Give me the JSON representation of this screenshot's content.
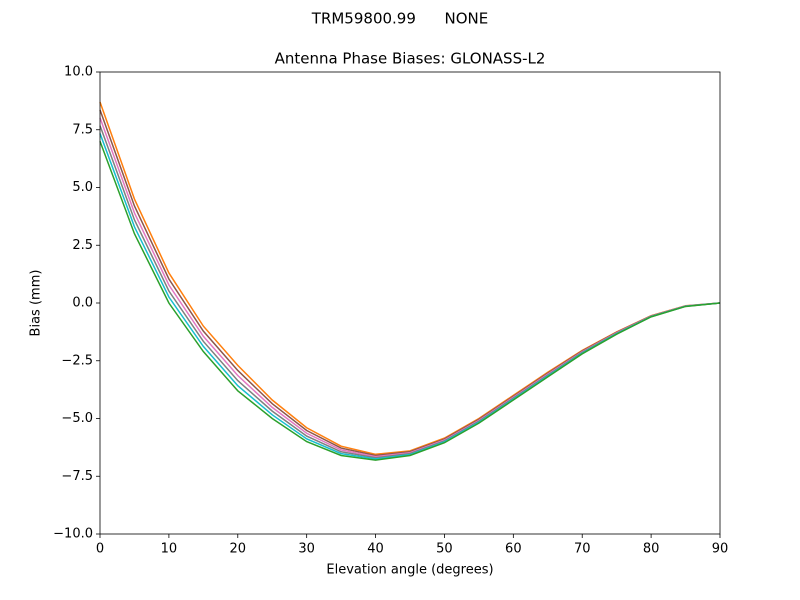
{
  "chart_data": {
    "type": "line",
    "suptitle": "TRM59800.99      NONE",
    "title": "Antenna Phase Biases: GLONASS-L2",
    "xlabel": "Elevation angle (degrees)",
    "ylabel": "Bias (mm)",
    "x": [
      0,
      5,
      10,
      15,
      20,
      25,
      30,
      35,
      40,
      45,
      50,
      55,
      60,
      65,
      70,
      75,
      80,
      85,
      90
    ],
    "xlim": [
      0,
      90
    ],
    "xticks": [
      0,
      10,
      20,
      30,
      40,
      50,
      60,
      70,
      80,
      90
    ],
    "ylim": [
      -10,
      10
    ],
    "yticks": [
      {
        "value": -10,
        "label": "−10.0"
      },
      {
        "value": -7.5,
        "label": "−7.5"
      },
      {
        "value": -5,
        "label": "−5.0"
      },
      {
        "value": -2.5,
        "label": "−2.5"
      },
      {
        "value": 0,
        "label": "0.0"
      },
      {
        "value": 2.5,
        "label": "2.5"
      },
      {
        "value": 5,
        "label": "5.0"
      },
      {
        "value": 7.5,
        "label": "7.5"
      },
      {
        "value": 10,
        "label": "10.0"
      }
    ],
    "series": [
      {
        "color": "#ff7f0e",
        "values": [
          8.7,
          4.5,
          1.3,
          -1.0,
          -2.7,
          -4.2,
          -5.4,
          -6.2,
          -6.55,
          -6.4,
          -5.85,
          -5.0,
          -4.0,
          -3.0,
          -2.05,
          -1.25,
          -0.55,
          -0.12,
          0
        ]
      },
      {
        "color": "#8c564b",
        "values": [
          8.36,
          4.2,
          1.04,
          -1.22,
          -2.92,
          -4.36,
          -5.52,
          -6.28,
          -6.6,
          -6.44,
          -5.89,
          -5.04,
          -4.04,
          -3.04,
          -2.08,
          -1.27,
          -0.56,
          -0.13,
          0
        ]
      },
      {
        "color": "#e377c2",
        "values": [
          8.02,
          3.9,
          0.78,
          -1.44,
          -3.14,
          -4.52,
          -5.64,
          -6.36,
          -6.65,
          -6.48,
          -5.93,
          -5.08,
          -4.08,
          -3.08,
          -2.11,
          -1.29,
          -0.57,
          -0.13,
          0
        ]
      },
      {
        "color": "#7f7f7f",
        "values": [
          7.68,
          3.6,
          0.52,
          -1.66,
          -3.36,
          -4.68,
          -5.76,
          -6.44,
          -6.7,
          -6.52,
          -5.97,
          -5.12,
          -4.12,
          -3.12,
          -2.14,
          -1.31,
          -0.58,
          -0.14,
          0
        ]
      },
      {
        "color": "#17becf",
        "values": [
          7.34,
          3.3,
          0.26,
          -1.88,
          -3.58,
          -4.84,
          -5.88,
          -6.52,
          -6.75,
          -6.56,
          -6.01,
          -5.16,
          -4.16,
          -3.16,
          -2.17,
          -1.33,
          -0.59,
          -0.14,
          0
        ]
      },
      {
        "color": "#2ca02c",
        "values": [
          7.0,
          3.0,
          0,
          -2.1,
          -3.8,
          -5.0,
          -6.0,
          -6.6,
          -6.8,
          -6.6,
          -6.05,
          -5.2,
          -4.2,
          -3.2,
          -2.2,
          -1.35,
          -0.6,
          -0.15,
          0
        ]
      }
    ]
  }
}
